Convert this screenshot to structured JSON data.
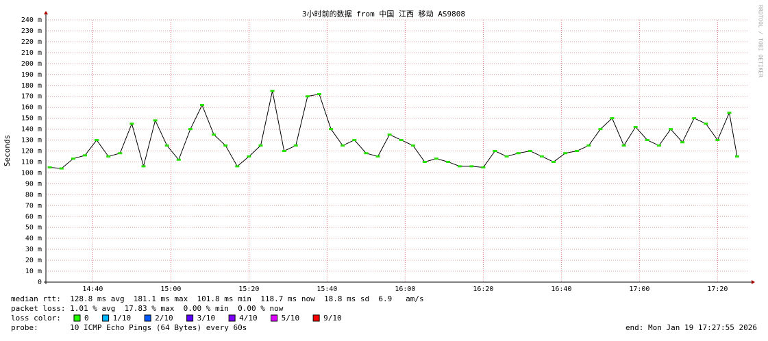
{
  "chart_data": {
    "type": "line",
    "title": "3小时前的数据 from 中国 江西 移动 AS9808",
    "y_label": "Seconds",
    "watermark": "RRDTOOL / TOBI OETIKER",
    "xlim": [
      868,
      1048
    ],
    "ylim": [
      0,
      240
    ],
    "xticks": [
      {
        "value": 880,
        "label": "14:40"
      },
      {
        "value": 900,
        "label": "15:00"
      },
      {
        "value": 920,
        "label": "15:20"
      },
      {
        "value": 940,
        "label": "15:40"
      },
      {
        "value": 960,
        "label": "16:00"
      },
      {
        "value": 980,
        "label": "16:20"
      },
      {
        "value": 1000,
        "label": "16:40"
      },
      {
        "value": 1020,
        "label": "17:00"
      },
      {
        "value": 1040,
        "label": "17:20"
      }
    ],
    "yticks": [
      {
        "value": 0,
        "label": "0"
      },
      {
        "value": 10,
        "label": "10 m"
      },
      {
        "value": 20,
        "label": "20 m"
      },
      {
        "value": 30,
        "label": "30 m"
      },
      {
        "value": 40,
        "label": "40 m"
      },
      {
        "value": 50,
        "label": "50 m"
      },
      {
        "value": 60,
        "label": "60 m"
      },
      {
        "value": 70,
        "label": "70 m"
      },
      {
        "value": 80,
        "label": "80 m"
      },
      {
        "value": 90,
        "label": "90 m"
      },
      {
        "value": 100,
        "label": "100 m"
      },
      {
        "value": 110,
        "label": "110 m"
      },
      {
        "value": 120,
        "label": "120 m"
      },
      {
        "value": 130,
        "label": "130 m"
      },
      {
        "value": 140,
        "label": "140 m"
      },
      {
        "value": 150,
        "label": "150 m"
      },
      {
        "value": 160,
        "label": "160 m"
      },
      {
        "value": 170,
        "label": "170 m"
      },
      {
        "value": 180,
        "label": "180 m"
      },
      {
        "value": 190,
        "label": "190 m"
      },
      {
        "value": 200,
        "label": "200 m"
      },
      {
        "value": 210,
        "label": "210 m"
      },
      {
        "value": 220,
        "label": "220 m"
      },
      {
        "value": 230,
        "label": "230 m"
      },
      {
        "value": 240,
        "label": "240 m"
      }
    ],
    "grid": true,
    "x": [
      869,
      872,
      875,
      878,
      881,
      884,
      887,
      890,
      893,
      896,
      899,
      902,
      905,
      908,
      911,
      914,
      917,
      920,
      923,
      926,
      929,
      932,
      935,
      938,
      941,
      944,
      947,
      950,
      953,
      956,
      959,
      962,
      965,
      968,
      971,
      974,
      977,
      980,
      983,
      986,
      989,
      992,
      995,
      998,
      1001,
      1004,
      1007,
      1010,
      1013,
      1016,
      1019,
      1022,
      1025,
      1028,
      1031,
      1034,
      1037,
      1040,
      1043,
      1045
    ],
    "series": [
      {
        "name": "median rtt",
        "color": "#26e000",
        "values": [
          105,
          104,
          113,
          116,
          130,
          115,
          118,
          145,
          106,
          148,
          125,
          112,
          140,
          162,
          135,
          125,
          106,
          115,
          125,
          175,
          120,
          125,
          170,
          172,
          140,
          125,
          130,
          118,
          115,
          135,
          130,
          125,
          110,
          113,
          110,
          106,
          106,
          105,
          120,
          115,
          118,
          120,
          115,
          110,
          118,
          120,
          125,
          140,
          150,
          125,
          142,
          130,
          125,
          140,
          128,
          150,
          145,
          130,
          155,
          115
        ]
      }
    ],
    "stats": [
      "median rtt:  128.8 ms avg  181.1 ms max  101.8 ms min  118.7 ms now  18.8 ms sd  6.9   am/s",
      "packet loss: 1.01 % avg  17.83 % max  0.00 % min  0.00 % now"
    ],
    "loss_title": "loss color:",
    "loss_colors": [
      {
        "label": "0",
        "color": "#26ff00"
      },
      {
        "label": "1/10",
        "color": "#00b8ff"
      },
      {
        "label": "2/10",
        "color": "#0059ff"
      },
      {
        "label": "3/10",
        "color": "#5e00ff"
      },
      {
        "label": "4/10",
        "color": "#7e00ff"
      },
      {
        "label": "5/10",
        "color": "#dd00ff"
      },
      {
        "label": "9/10",
        "color": "#ff0000"
      }
    ],
    "probe": "probe:       10 ICMP Echo Pings (64 Bytes) every 60s",
    "end": "end: Mon Jan 19 17:27:55 2026"
  }
}
